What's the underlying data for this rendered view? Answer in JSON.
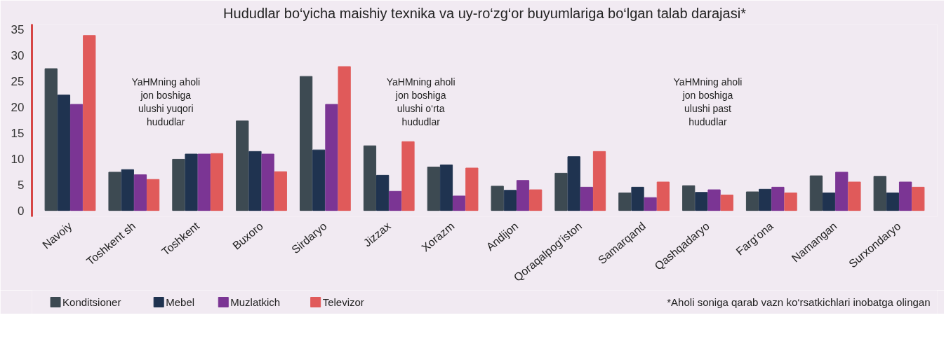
{
  "chart_data": {
    "type": "bar",
    "title": "Hududlar bo‘yicha maishiy texnika va uy-ro‘zg‘or buyumlariga bo‘lgan talab darajasi*",
    "categories": [
      "Navoiy",
      "Toshkent sh",
      "Toshkent",
      "Buxoro",
      "Sirdaryo",
      "Jizzax",
      "Xorazm",
      "Andijon",
      "Qoraqalpog‘iston",
      "Samarqand",
      "Qashqadaryo",
      "Farg‘ona",
      "Namangan",
      "Surxondaryo"
    ],
    "series": [
      {
        "name": "Konditsioner",
        "color": "#3d4a52",
        "values": [
          27.4,
          7.4,
          9.9,
          17.3,
          25.9,
          12.5,
          8.4,
          4.7,
          7.2,
          3.4,
          4.8,
          3.6,
          6.7,
          6.6
        ]
      },
      {
        "name": "Mebel",
        "color": "#1f3350",
        "values": [
          22.3,
          7.9,
          10.9,
          11.4,
          11.7,
          6.8,
          8.8,
          3.9,
          10.4,
          4.5,
          3.5,
          4.1,
          3.4,
          3.4
        ]
      },
      {
        "name": "Muzlatkich",
        "color": "#7b3594",
        "values": [
          20.5,
          6.9,
          10.9,
          10.9,
          20.5,
          3.7,
          2.8,
          5.8,
          4.5,
          2.5,
          4.0,
          4.5,
          7.4,
          5.5
        ]
      },
      {
        "name": "Televizor",
        "color": "#e05a5a",
        "values": [
          33.8,
          6.0,
          11.0,
          7.5,
          27.8,
          13.3,
          8.2,
          4.0,
          11.4,
          5.5,
          3.0,
          3.4,
          5.5,
          4.5
        ]
      }
    ],
    "ylim": [
      -1.2,
      36
    ],
    "yticks": [
      0,
      5,
      10,
      15,
      20,
      25,
      30,
      35
    ],
    "grid": false,
    "legend": "bottom left",
    "annotations": [
      "YaHMning aholi\njon boshiga\nulushi yuqori\nhududlar",
      "YaHMning aholi\njon boshiga\nulushi o‘rta\nhududlar",
      "YaHMning aholi\njon boshiga\nulushi past\nhududlar",
      "*Aholi soniga qarab vazn ko‘rsatkichlari inobatga olingan"
    ]
  }
}
